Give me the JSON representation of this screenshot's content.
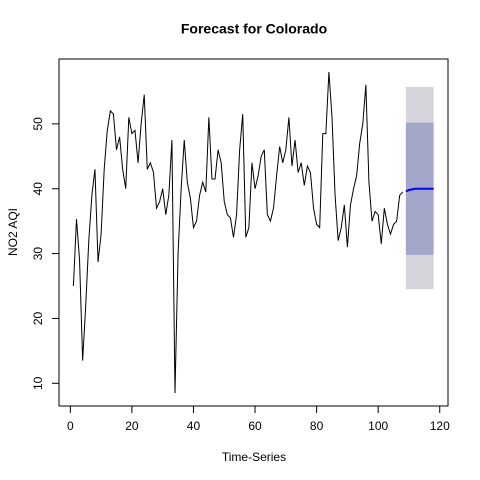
{
  "chart_data": {
    "type": "line",
    "title": "Forecast for Colorado",
    "x_label": "Time-Series",
    "y_label": "NO2 AQI",
    "xlim": [
      -3.68,
      122.68
    ],
    "ylim": [
      6.5,
      60
    ],
    "xticks": [
      0,
      20,
      40,
      60,
      80,
      100,
      120
    ],
    "yticks": [
      10,
      20,
      30,
      40,
      50
    ],
    "bands": [
      {
        "color": "#d5d5db",
        "x": [
          109,
          110,
          111,
          112,
          113,
          114,
          115,
          116,
          117,
          118
        ],
        "lower": [
          24.5,
          24.5,
          24.5,
          24.5,
          24.5,
          24.5,
          24.5,
          24.5,
          24.5,
          24.5
        ],
        "upper": [
          55.7,
          55.7,
          55.7,
          55.7,
          55.7,
          55.7,
          55.7,
          55.7,
          55.7,
          55.7
        ]
      },
      {
        "color": "#a2a6c9",
        "x": [
          109,
          110,
          111,
          112,
          113,
          114,
          115,
          116,
          117,
          118
        ],
        "lower": [
          29.8,
          29.8,
          29.8,
          29.8,
          29.8,
          29.8,
          29.8,
          29.8,
          29.8,
          29.8
        ],
        "upper": [
          50.2,
          50.2,
          50.2,
          50.2,
          50.2,
          50.2,
          50.2,
          50.2,
          50.2,
          50.2
        ]
      }
    ],
    "series": [
      {
        "color": "#000000",
        "width": 1,
        "x": [
          1,
          2,
          3,
          4,
          5,
          6,
          7,
          8,
          9,
          10,
          11,
          12,
          13,
          14,
          15,
          16,
          17,
          18,
          19,
          20,
          21,
          22,
          23,
          24,
          25,
          26,
          27,
          28,
          29,
          30,
          31,
          32,
          33,
          34,
          35,
          36,
          37,
          38,
          39,
          40,
          41,
          42,
          43,
          44,
          45,
          46,
          47,
          48,
          49,
          50,
          51,
          52,
          53,
          54,
          55,
          56,
          57,
          58,
          59,
          60,
          61,
          62,
          63,
          64,
          65,
          66,
          67,
          68,
          69,
          70,
          71,
          72,
          73,
          74,
          75,
          76,
          77,
          78,
          79,
          80,
          81,
          82,
          83,
          84,
          85,
          86,
          87,
          88,
          89,
          90,
          91,
          92,
          93,
          94,
          95,
          96,
          97,
          98,
          99,
          100,
          101,
          102,
          103,
          104,
          105,
          106,
          107,
          108
        ],
        "values": [
          25,
          35.3,
          29,
          13.5,
          22,
          32,
          39,
          43,
          28.7,
          33,
          43,
          49,
          52,
          51.5,
          46,
          48,
          43,
          40,
          51,
          48.5,
          49,
          44,
          50,
          54.5,
          43,
          44,
          42.5,
          37,
          38,
          40,
          36,
          39,
          47.5,
          8.5,
          30,
          40,
          47.5,
          41,
          38.5,
          34,
          35,
          39,
          41,
          39.5,
          51,
          41.5,
          41.5,
          46,
          44,
          38,
          36,
          35.5,
          32.5,
          36,
          46,
          51.5,
          32.5,
          34,
          44,
          40,
          42,
          45,
          46,
          36,
          35,
          37,
          42,
          46.5,
          44,
          46,
          51,
          43.5,
          47.5,
          42.5,
          44,
          40.5,
          43.5,
          42.5,
          37,
          34.5,
          34,
          48.5,
          48.5,
          58,
          51,
          39,
          32,
          34,
          37.5,
          31,
          37.5,
          40,
          42,
          47,
          50,
          56,
          41,
          35,
          36.5,
          36,
          31.5,
          37,
          34.5,
          33,
          34.5,
          35,
          39,
          39.5
        ]
      },
      {
        "color": "#0000ff",
        "width": 2,
        "x": [
          109,
          110,
          111,
          112,
          113,
          114,
          115,
          116,
          117,
          118
        ],
        "values": [
          39.6,
          39.8,
          39.9,
          40,
          40,
          40,
          40,
          40,
          40,
          40
        ]
      }
    ]
  }
}
